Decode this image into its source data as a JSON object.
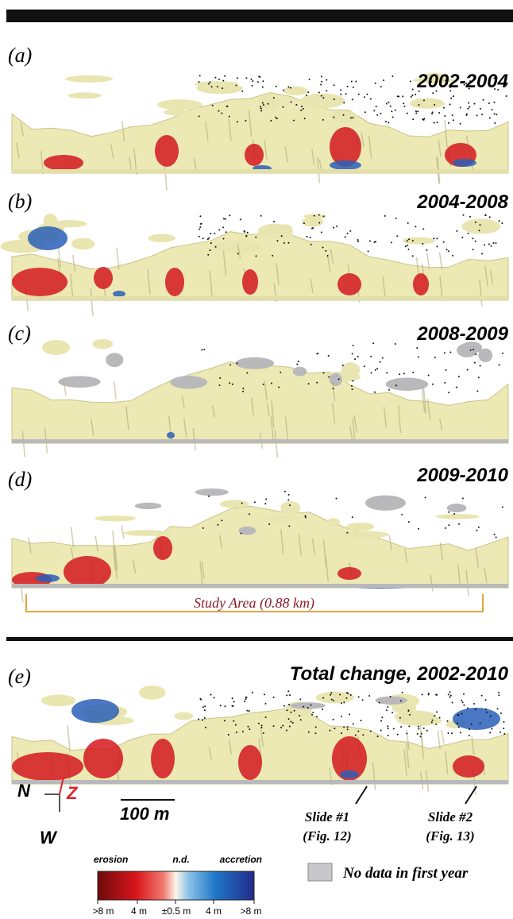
{
  "panels": [
    {
      "label": "(a)",
      "title": "2002-2004"
    },
    {
      "label": "(b)",
      "title": "2004-2008"
    },
    {
      "label": "(c)",
      "title": "2008-2009"
    },
    {
      "label": "(d)",
      "title": "2009-2010"
    },
    {
      "label": "(e)",
      "title": "Total change, 2002-2010"
    }
  ],
  "study_area": "Study Area (0.88 km)",
  "scale_bar": "100 m",
  "compass": {
    "north": "N",
    "zenith": "Z",
    "west": "W"
  },
  "slides": [
    {
      "name": "Slide #1",
      "ref": "(Fig. 12)"
    },
    {
      "name": "Slide #2",
      "ref": "(Fig. 13)"
    }
  ],
  "legend": {
    "left": "erosion",
    "middle": "n.d.",
    "right": "accretion",
    "ticks": [
      ">8 m",
      "4 m",
      "±0.5 m",
      "4 m",
      ">8 m"
    ],
    "no_data": "No data in first year"
  }
}
